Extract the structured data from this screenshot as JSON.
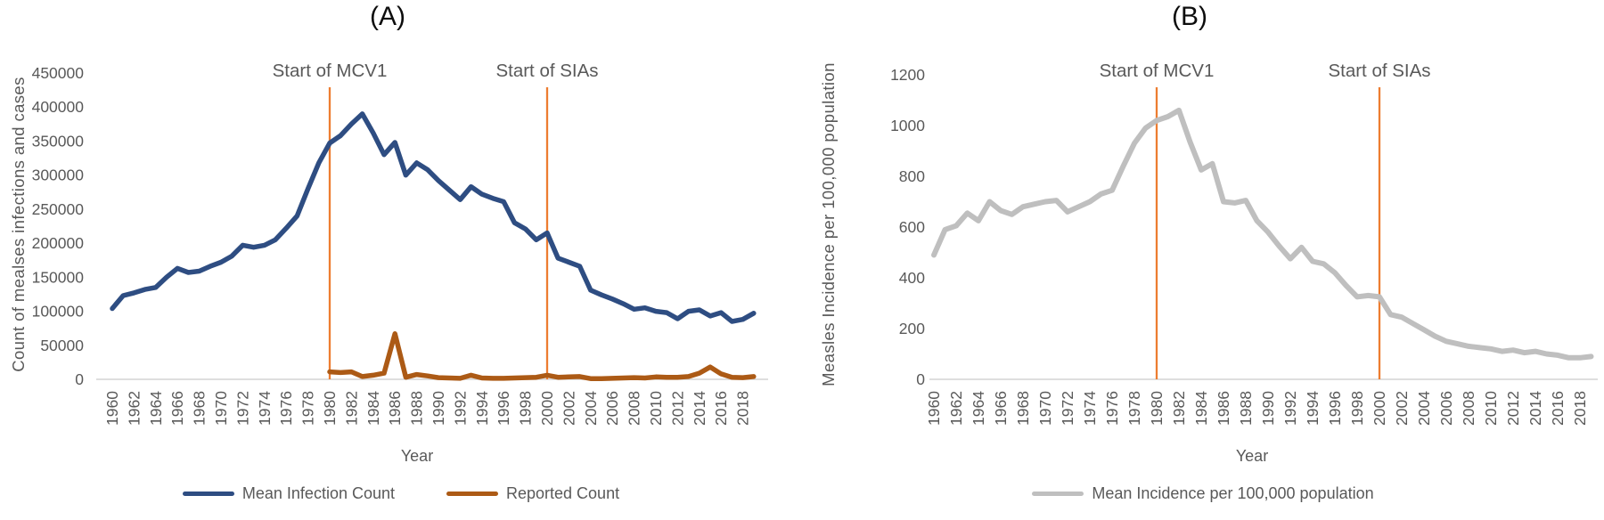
{
  "colors": {
    "infection_blue": "#2E4D82",
    "reported_brown_orange": "#AC5A15",
    "incidence_gray": "#BFBFBF",
    "annotation_orange": "#ED7D31",
    "axis_text_gray": "#595959",
    "axis_line_gray": "#D9D9D9",
    "title_black": "#0d0d0d"
  },
  "chart_data": [
    {
      "type": "line",
      "panel": "A",
      "title": "(A)",
      "xlabel": "Year",
      "ylabel": "Count of mealses infections and cases",
      "grid": "off",
      "legend_position": "bottom",
      "ylim": [
        0,
        450000
      ],
      "y_tick_step": 50000,
      "x_years": [
        1960,
        1961,
        1962,
        1963,
        1964,
        1965,
        1966,
        1967,
        1968,
        1969,
        1970,
        1971,
        1972,
        1973,
        1974,
        1975,
        1976,
        1977,
        1978,
        1979,
        1980,
        1981,
        1982,
        1983,
        1984,
        1985,
        1986,
        1987,
        1988,
        1989,
        1990,
        1991,
        1992,
        1993,
        1994,
        1995,
        1996,
        1997,
        1998,
        1999,
        2000,
        2001,
        2002,
        2003,
        2004,
        2005,
        2006,
        2007,
        2008,
        2009,
        2010,
        2011,
        2012,
        2013,
        2014,
        2015,
        2016,
        2017,
        2018,
        2019
      ],
      "x_tick_labels": [
        "1960",
        "1962",
        "1964",
        "1966",
        "1968",
        "1970",
        "1972",
        "1974",
        "1976",
        "1978",
        "1980",
        "1982",
        "1984",
        "1986",
        "1988",
        "1990",
        "1992",
        "1994",
        "1996",
        "1998",
        "2000",
        "2002",
        "2004",
        "2006",
        "2008",
        "2010",
        "2012",
        "2014",
        "2016",
        "2018"
      ],
      "annotations": [
        {
          "label": "Start of MCV1",
          "year": 1980
        },
        {
          "label": "Start of SIAs",
          "year": 2000
        }
      ],
      "series": [
        {
          "name": "Mean Infection Count",
          "color": "#2E4D82",
          "values": [
            104000,
            123000,
            127000,
            132000,
            135000,
            150000,
            163000,
            157000,
            159000,
            166000,
            172000,
            181000,
            197000,
            194000,
            197000,
            205000,
            222000,
            240000,
            280000,
            318000,
            347000,
            358000,
            375000,
            390000,
            362000,
            330000,
            348000,
            300000,
            318000,
            308000,
            292000,
            278000,
            264000,
            283000,
            272000,
            266000,
            261000,
            230000,
            221000,
            205000,
            215000,
            178000,
            172000,
            166000,
            131000,
            124000,
            118000,
            111000,
            103000,
            105000,
            100000,
            98000,
            89000,
            100000,
            102000,
            93000,
            98000,
            85000,
            88000,
            97000
          ]
        },
        {
          "name": "Reported Count",
          "color": "#AC5A15",
          "values": [
            null,
            null,
            null,
            null,
            null,
            null,
            null,
            null,
            null,
            null,
            null,
            null,
            null,
            null,
            null,
            null,
            null,
            null,
            null,
            null,
            11000,
            10000,
            11000,
            4000,
            6000,
            9000,
            67000,
            3000,
            7000,
            5000,
            2500,
            2000,
            1500,
            6000,
            2000,
            1500,
            1500,
            2000,
            2500,
            3000,
            6000,
            3000,
            3500,
            4000,
            1000,
            1000,
            1500,
            2000,
            2500,
            2000,
            3500,
            3000,
            3000,
            4000,
            9000,
            18000,
            8000,
            3000,
            2500,
            4000
          ]
        }
      ]
    },
    {
      "type": "line",
      "panel": "B",
      "title": "(B)",
      "xlabel": "Year",
      "ylabel": "Measles Incidence per 100,000 population",
      "grid": "off",
      "legend_position": "bottom",
      "ylim": [
        0,
        1200
      ],
      "y_tick_step": 200,
      "x_years": [
        1960,
        1961,
        1962,
        1963,
        1964,
        1965,
        1966,
        1967,
        1968,
        1969,
        1970,
        1971,
        1972,
        1973,
        1974,
        1975,
        1976,
        1977,
        1978,
        1979,
        1980,
        1981,
        1982,
        1983,
        1984,
        1985,
        1986,
        1987,
        1988,
        1989,
        1990,
        1991,
        1992,
        1993,
        1994,
        1995,
        1996,
        1997,
        1998,
        1999,
        2000,
        2001,
        2002,
        2003,
        2004,
        2005,
        2006,
        2007,
        2008,
        2009,
        2010,
        2011,
        2012,
        2013,
        2014,
        2015,
        2016,
        2017,
        2018,
        2019
      ],
      "x_tick_labels": [
        "1960",
        "1962",
        "1964",
        "1966",
        "1968",
        "1970",
        "1972",
        "1974",
        "1976",
        "1978",
        "1980",
        "1982",
        "1984",
        "1986",
        "1988",
        "1990",
        "1992",
        "1994",
        "1996",
        "1998",
        "2000",
        "2002",
        "2004",
        "2006",
        "2008",
        "2010",
        "2012",
        "2014",
        "2016",
        "2018"
      ],
      "annotations": [
        {
          "label": "Start of MCV1",
          "year": 1980
        },
        {
          "label": "Start of SIAs",
          "year": 2000
        }
      ],
      "series": [
        {
          "name": "Mean Incidence per 100,000 population",
          "color": "#BFBFBF",
          "values": [
            490,
            590,
            605,
            655,
            625,
            700,
            665,
            650,
            680,
            690,
            700,
            705,
            660,
            680,
            700,
            730,
            745,
            840,
            930,
            990,
            1020,
            1035,
            1060,
            935,
            825,
            850,
            700,
            695,
            705,
            625,
            580,
            525,
            475,
            520,
            465,
            455,
            420,
            370,
            325,
            330,
            325,
            255,
            245,
            220,
            195,
            170,
            150,
            140,
            130,
            125,
            120,
            110,
            115,
            105,
            110,
            100,
            95,
            85,
            85,
            90
          ]
        }
      ]
    }
  ]
}
